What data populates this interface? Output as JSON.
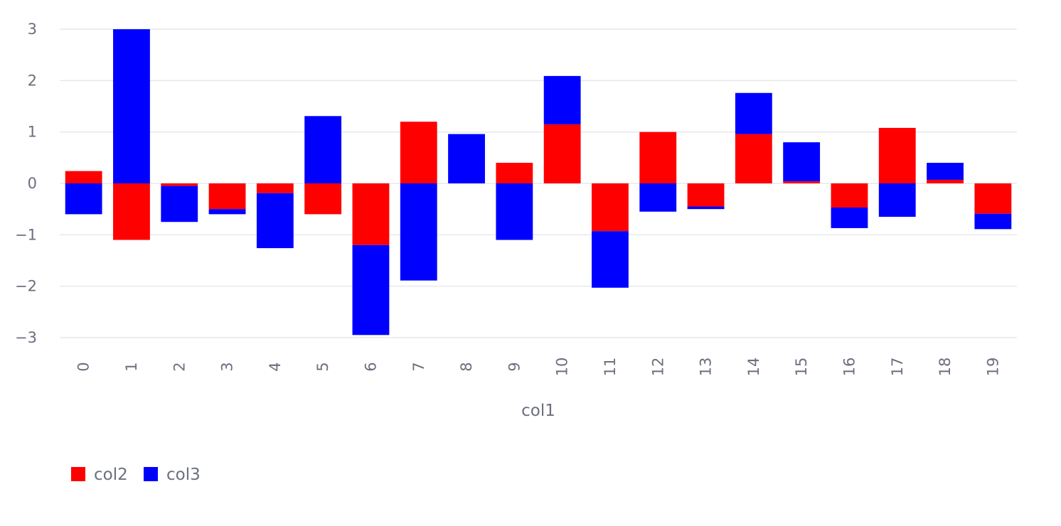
{
  "chart_data": {
    "type": "bar",
    "stacked": true,
    "categories": [
      "0",
      "1",
      "2",
      "3",
      "4",
      "5",
      "6",
      "7",
      "8",
      "9",
      "10",
      "11",
      "12",
      "13",
      "14",
      "15",
      "16",
      "17",
      "18",
      "19"
    ],
    "series": [
      {
        "name": "col2",
        "color": "#ff0000",
        "values": [
          0.24,
          -1.1,
          -0.05,
          -0.5,
          -0.19,
          -0.6,
          -1.2,
          1.2,
          0.0,
          0.4,
          1.15,
          -0.93,
          1.0,
          -0.45,
          0.96,
          0.04,
          -0.47,
          1.08,
          0.07,
          -0.59
        ]
      },
      {
        "name": "col3",
        "color": "#0000ff",
        "values": [
          -0.6,
          3.0,
          -0.7,
          -0.1,
          -1.07,
          1.31,
          -1.75,
          -1.89,
          0.96,
          -1.1,
          0.94,
          -1.1,
          -0.55,
          -0.05,
          0.8,
          0.76,
          -0.4,
          -0.65,
          0.33,
          -0.3
        ]
      }
    ],
    "xlabel": "col1",
    "ylabel": "",
    "ylim": [
      -3.3,
      3.15
    ],
    "yticks": [
      3,
      2,
      1,
      0,
      -1,
      -2,
      -3
    ],
    "ytick_labels": [
      "3",
      "2",
      "1",
      "0",
      "−1",
      "−2",
      "−3"
    ],
    "grid": true,
    "legend_position": "bottom-left"
  }
}
